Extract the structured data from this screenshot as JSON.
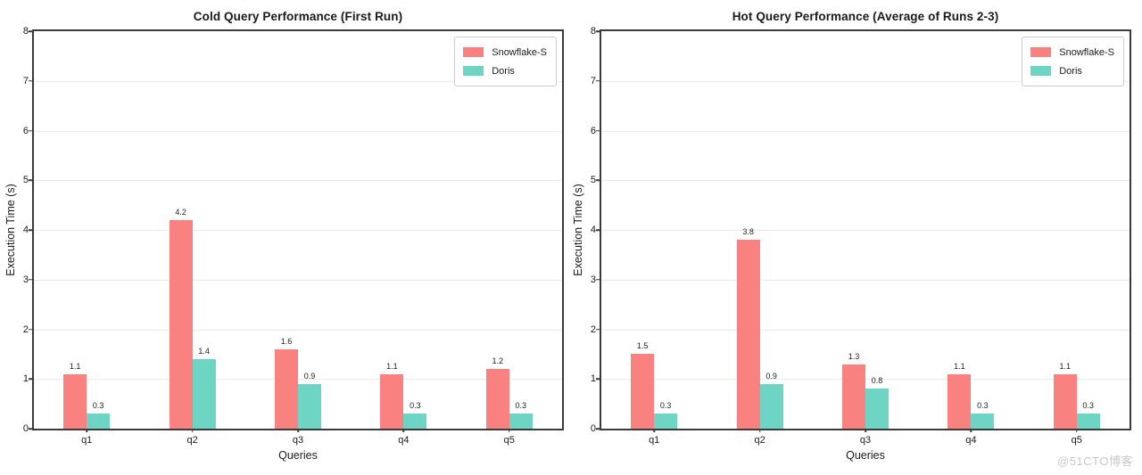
{
  "watermark": "@51CTO博客",
  "colors": {
    "snowflake": "#F98180",
    "doris": "#6ED5C5",
    "grid": "#ebebeb",
    "spine": "#3a3a3a"
  },
  "chart_data": [
    {
      "type": "bar",
      "title": "Cold Query Performance (First Run)",
      "xlabel": "Queries",
      "ylabel": "Execution Time (s)",
      "categories": [
        "q1",
        "q2",
        "q3",
        "q4",
        "q5"
      ],
      "yticks": [
        0,
        1,
        2,
        3,
        4,
        5,
        6,
        7,
        8
      ],
      "ylim": [
        0,
        8
      ],
      "grid": true,
      "legend_position": "upper right",
      "series": [
        {
          "name": "Snowflake-S",
          "color": "#F98180",
          "values": [
            1.1,
            4.2,
            1.6,
            1.1,
            1.2
          ]
        },
        {
          "name": "Doris",
          "color": "#6ED5C5",
          "values": [
            0.3,
            1.4,
            0.9,
            0.3,
            0.3
          ]
        }
      ]
    },
    {
      "type": "bar",
      "title": "Hot Query Performance (Average of Runs 2-3)",
      "xlabel": "Queries",
      "ylabel": "Execution Time (s)",
      "categories": [
        "q1",
        "q2",
        "q3",
        "q4",
        "q5"
      ],
      "yticks": [
        0,
        1,
        2,
        3,
        4,
        5,
        6,
        7,
        8
      ],
      "ylim": [
        0,
        8
      ],
      "grid": true,
      "legend_position": "upper right",
      "series": [
        {
          "name": "Snowflake-S",
          "color": "#F98180",
          "values": [
            1.5,
            3.8,
            1.3,
            1.1,
            1.1
          ]
        },
        {
          "name": "Doris",
          "color": "#6ED5C5",
          "values": [
            0.3,
            0.9,
            0.8,
            0.3,
            0.3
          ]
        }
      ]
    }
  ]
}
